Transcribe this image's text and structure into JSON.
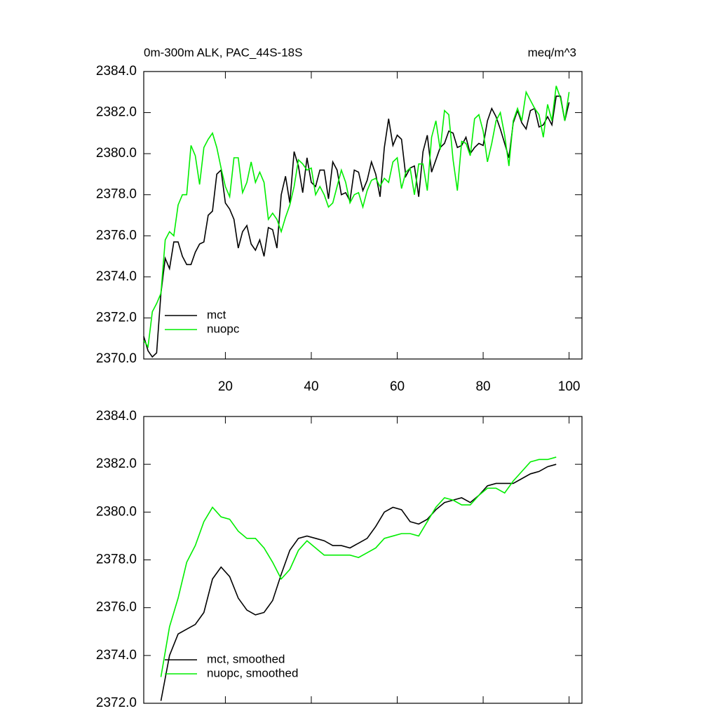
{
  "chart_data": [
    {
      "type": "line",
      "title": "0m-300m ALK, PAC_44S-18S",
      "units": "meq/m^3",
      "x": [
        1,
        2,
        3,
        4,
        5,
        6,
        7,
        8,
        9,
        10,
        11,
        12,
        13,
        14,
        15,
        16,
        17,
        18,
        19,
        20,
        21,
        22,
        23,
        24,
        25,
        26,
        27,
        28,
        29,
        30,
        31,
        32,
        33,
        34,
        35,
        36,
        37,
        38,
        39,
        40,
        41,
        42,
        43,
        44,
        45,
        46,
        47,
        48,
        49,
        50,
        51,
        52,
        53,
        54,
        55,
        56,
        57,
        58,
        59,
        60,
        61,
        62,
        63,
        64,
        65,
        66,
        67,
        68,
        69,
        70,
        71,
        72,
        73,
        74,
        75,
        76,
        77,
        78,
        79,
        80,
        81,
        82,
        83,
        84,
        85,
        86,
        87,
        88,
        89,
        90,
        91,
        92,
        93,
        94,
        95,
        96,
        97,
        98,
        99,
        100
      ],
      "series": [
        {
          "name": "mct",
          "color": "#000000",
          "values": [
            2371.1,
            2370.4,
            2370.1,
            2370.3,
            2373.2,
            2374.9,
            2374.4,
            2375.7,
            2375.7,
            2375.0,
            2374.6,
            2374.6,
            2375.2,
            2375.6,
            2375.7,
            2377.0,
            2377.2,
            2379.0,
            2379.2,
            2377.6,
            2377.3,
            2376.8,
            2375.4,
            2376.2,
            2376.5,
            2375.6,
            2375.3,
            2375.8,
            2375.0,
            2376.4,
            2376.3,
            2375.4,
            2378.0,
            2378.9,
            2377.6,
            2380.1,
            2379.4,
            2378.1,
            2379.8,
            2378.6,
            2378.4,
            2379.2,
            2379.2,
            2377.8,
            2379.6,
            2379.2,
            2378.0,
            2378.1,
            2377.7,
            2379.2,
            2379.1,
            2378.2,
            2378.7,
            2379.6,
            2379.0,
            2377.9,
            2380.3,
            2381.7,
            2380.4,
            2380.9,
            2380.7,
            2378.9,
            2379.3,
            2379.4,
            2377.9,
            2380.1,
            2380.9,
            2379.1,
            2379.7,
            2380.3,
            2380.5,
            2381.1,
            2381.0,
            2380.3,
            2380.4,
            2380.8,
            2380.0,
            2380.3,
            2380.5,
            2380.4,
            2381.6,
            2382.2,
            2381.8,
            2381.2,
            2380.5,
            2379.8,
            2381.5,
            2382.1,
            2381.5,
            2381.2,
            2382.1,
            2382.2,
            2381.3,
            2381.4,
            2381.8,
            2381.4,
            2382.8,
            2382.8,
            2381.6,
            2382.5
          ]
        },
        {
          "name": "nuopc",
          "color": "#00ee00",
          "values": [
            2370.9,
            2370.6,
            2372.3,
            2372.7,
            2373.2,
            2375.8,
            2376.2,
            2376.0,
            2377.5,
            2378.0,
            2378.0,
            2380.4,
            2379.9,
            2378.5,
            2380.3,
            2380.7,
            2381.0,
            2380.3,
            2379.3,
            2378.4,
            2377.9,
            2379.8,
            2379.8,
            2378.1,
            2378.6,
            2379.6,
            2378.6,
            2379.1,
            2378.6,
            2376.8,
            2377.1,
            2376.8,
            2376.2,
            2376.9,
            2377.5,
            2378.4,
            2379.7,
            2379.5,
            2379.2,
            2379.3,
            2378.0,
            2378.4,
            2378.0,
            2377.4,
            2377.6,
            2378.4,
            2379.2,
            2378.6,
            2377.6,
            2378.0,
            2378.1,
            2377.4,
            2378.2,
            2378.7,
            2378.8,
            2378.4,
            2378.8,
            2378.6,
            2379.6,
            2379.8,
            2378.3,
            2379.1,
            2379.3,
            2378.0,
            2379.5,
            2379.5,
            2378.2,
            2380.8,
            2381.6,
            2380.2,
            2382.1,
            2381.9,
            2379.7,
            2378.2,
            2380.6,
            2380.5,
            2379.9,
            2381.7,
            2381.9,
            2381.1,
            2379.6,
            2380.5,
            2381.6,
            2382.0,
            2380.9,
            2379.4,
            2381.6,
            2382.2,
            2381.6,
            2383.0,
            2382.6,
            2382.2,
            2381.9,
            2380.8,
            2382.4,
            2381.6,
            2383.3,
            2382.7,
            2381.6,
            2383.0
          ]
        }
      ],
      "xlim": [
        1,
        103
      ],
      "xticks": [
        20,
        40,
        60,
        80,
        100
      ],
      "ylim": [
        2370,
        2384
      ],
      "yticks": [
        {
          "value": 2370,
          "label": "2370.0"
        },
        {
          "value": 2372,
          "label": "2372.0"
        },
        {
          "value": 2374,
          "label": "2374.0"
        },
        {
          "value": 2376,
          "label": "2376.0"
        },
        {
          "value": 2378,
          "label": "2378.0"
        },
        {
          "value": 2380,
          "label": "2380.0"
        },
        {
          "value": 2382,
          "label": "2382.0"
        },
        {
          "value": 2384,
          "label": "2384.0"
        }
      ],
      "legend": "lower left"
    },
    {
      "type": "line",
      "x": [
        5,
        7,
        9,
        11,
        13,
        15,
        17,
        19,
        21,
        23,
        25,
        27,
        29,
        31,
        33,
        35,
        37,
        39,
        41,
        43,
        45,
        47,
        49,
        51,
        53,
        55,
        57,
        59,
        61,
        63,
        65,
        67,
        69,
        71,
        73,
        75,
        77,
        79,
        81,
        83,
        85,
        87,
        89,
        91,
        93,
        95,
        97
      ],
      "series": [
        {
          "name": "mct, smoothed",
          "color": "#000000",
          "values": [
            2372.1,
            2374.0,
            2374.9,
            2375.1,
            2375.3,
            2375.8,
            2377.2,
            2377.7,
            2377.3,
            2376.4,
            2375.9,
            2375.7,
            2375.8,
            2376.3,
            2377.4,
            2378.4,
            2378.9,
            2379.0,
            2378.9,
            2378.8,
            2378.6,
            2378.6,
            2378.5,
            2378.7,
            2378.9,
            2379.4,
            2380.0,
            2380.2,
            2380.1,
            2379.6,
            2379.5,
            2379.7,
            2380.1,
            2380.4,
            2380.5,
            2380.6,
            2380.4,
            2380.7,
            2381.1,
            2381.2,
            2381.2,
            2381.2,
            2381.4,
            2381.6,
            2381.7,
            2381.9,
            2382.0
          ]
        },
        {
          "name": "nuopc, smoothed",
          "color": "#00ee00",
          "values": [
            2373.1,
            2375.2,
            2376.4,
            2377.9,
            2378.6,
            2379.6,
            2380.2,
            2379.8,
            2379.7,
            2379.2,
            2378.9,
            2378.9,
            2378.5,
            2377.9,
            2377.2,
            2377.6,
            2378.4,
            2378.8,
            2378.5,
            2378.2,
            2378.2,
            2378.2,
            2378.2,
            2378.1,
            2378.3,
            2378.5,
            2378.9,
            2379.0,
            2379.1,
            2379.1,
            2379.0,
            2379.6,
            2380.2,
            2380.6,
            2380.5,
            2380.3,
            2380.3,
            2380.7,
            2381.0,
            2381.0,
            2380.8,
            2381.3,
            2381.7,
            2382.1,
            2382.2,
            2382.2,
            2382.3
          ]
        }
      ],
      "xlim": [
        1,
        103
      ],
      "xticks": [
        20,
        40,
        60,
        80,
        100
      ],
      "ylim": [
        2372,
        2384
      ],
      "yticks": [
        {
          "value": 2372,
          "label": "2372.0"
        },
        {
          "value": 2374,
          "label": "2374.0"
        },
        {
          "value": 2376,
          "label": "2376.0"
        },
        {
          "value": 2378,
          "label": "2378.0"
        },
        {
          "value": 2380,
          "label": "2380.0"
        },
        {
          "value": 2382,
          "label": "2382.0"
        },
        {
          "value": 2384,
          "label": "2384.0"
        }
      ],
      "legend": "lower left"
    }
  ]
}
